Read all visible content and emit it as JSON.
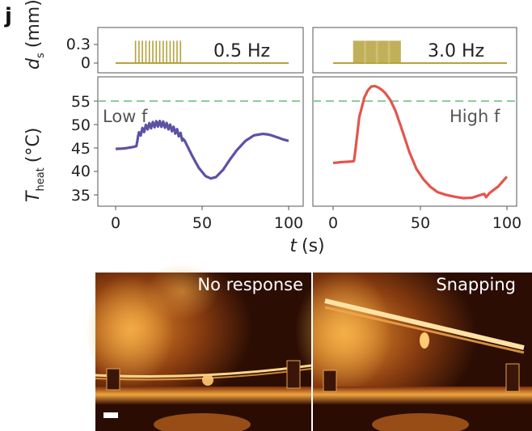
{
  "panel_letter": "j",
  "chart_data": [
    {
      "type": "line",
      "name": "ds-low",
      "label": "0.5 Hz",
      "color": "#b5a23c",
      "frequency_hz": 0.5,
      "xlim": [
        0,
        100
      ],
      "ylim": [
        -0.05,
        0.45
      ],
      "yticks": [
        "0.3",
        "0"
      ],
      "pulse_window": [
        11.5,
        39
      ],
      "pulse_amplitude": 0.36
    },
    {
      "type": "line",
      "name": "ds-high",
      "label": "3.0 Hz",
      "color": "#b5a23c",
      "frequency_hz": 3.0,
      "xlim": [
        0,
        100
      ],
      "ylim": [
        -0.05,
        0.45
      ],
      "pulse_window": [
        11.5,
        39
      ],
      "pulse_amplitude": 0.36
    },
    {
      "type": "line",
      "name": "temp-low",
      "annotation": "Low f",
      "color": "#5b52a4",
      "xlim": [
        0,
        100
      ],
      "ylim": [
        32,
        59
      ],
      "threshold": 55,
      "threshold_color": "#8fcb9b",
      "yticks": [
        "55",
        "50",
        "45",
        "40",
        "35"
      ],
      "xticks": [
        "0",
        "50",
        "100"
      ],
      "x": [
        0,
        5,
        10,
        12,
        13,
        15,
        18,
        22,
        25,
        28,
        32,
        36,
        40,
        44,
        48,
        52,
        55,
        58,
        62,
        66,
        70,
        75,
        80,
        85,
        88,
        90,
        94,
        97,
        100
      ],
      "y": [
        44.8,
        44.9,
        45.2,
        45.4,
        47.5,
        48.5,
        49.5,
        50.0,
        50.2,
        50.0,
        49.3,
        48.3,
        46.5,
        43.5,
        40.8,
        39.0,
        38.5,
        38.8,
        40.3,
        42.5,
        44.5,
        46.5,
        47.7,
        48.0,
        47.9,
        47.7,
        47.2,
        46.8,
        46.5
      ],
      "ripple": {
        "start": 13,
        "end": 39,
        "frequency_hz": 0.5,
        "amplitude": 0.6
      }
    },
    {
      "type": "line",
      "name": "temp-high",
      "annotation": "High f",
      "color": "#e3554c",
      "xlim": [
        0,
        100
      ],
      "ylim": [
        32,
        59
      ],
      "threshold": 55,
      "threshold_color": "#8fcb9b",
      "xticks": [
        "0",
        "50",
        "100"
      ],
      "x": [
        0,
        5,
        10,
        12,
        13,
        15,
        18,
        20,
        22,
        24,
        26,
        28,
        30,
        33,
        36,
        40,
        44,
        48,
        52,
        56,
        60,
        65,
        70,
        75,
        80,
        85,
        87,
        88,
        90,
        95,
        100
      ],
      "y": [
        41.8,
        42.0,
        42.1,
        42.2,
        45.0,
        51.5,
        55.8,
        57.3,
        58.1,
        58.2,
        57.9,
        57.4,
        56.7,
        55.2,
        52.8,
        48.5,
        44.0,
        40.5,
        38.3,
        36.7,
        35.6,
        35.0,
        34.6,
        34.3,
        34.4,
        35.0,
        35.2,
        34.5,
        35.4,
        36.8,
        38.9
      ]
    }
  ],
  "axes": {
    "xlabel_var": "t",
    "xlabel_unit": "(s)",
    "ylabel_top_var": "d",
    "ylabel_top_sub": "s",
    "ylabel_top_unit": "(mm)",
    "ylabel_bottom_var": "T",
    "ylabel_bottom_sub": "heat",
    "ylabel_bottom_unit": "(°C)"
  },
  "photos": {
    "left_label": "No response",
    "right_label": "Snapping"
  }
}
